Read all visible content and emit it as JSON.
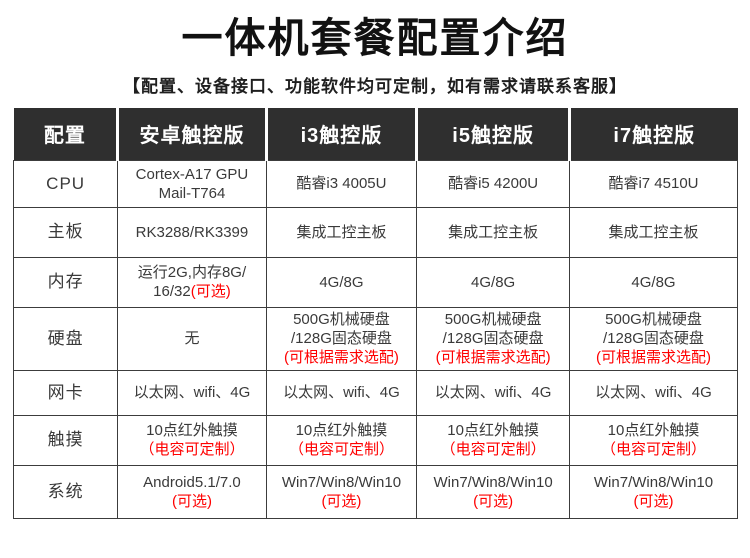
{
  "page": {
    "title": "一体机套餐配置介绍",
    "subtitle": "【配置、设备接口、功能软件均可定制，如有需求请联系客服】"
  },
  "colors": {
    "header_bg": "#2f2f2f",
    "header_text": "#ffffff",
    "body_text": "#3a3a3a",
    "border": "#3c3c3c",
    "highlight_red": "#ff0000"
  },
  "table": {
    "columns": [
      "配置",
      "安卓触控版",
      "i3触控版",
      "i5触控版",
      "i7触控版"
    ],
    "rows": [
      {
        "label": "CPU",
        "cells": [
          [
            [
              {
                "t": "Cortex-A17 GPU"
              }
            ],
            [
              {
                "t": "Mail-T764"
              }
            ]
          ],
          [
            [
              {
                "t": "酷睿i3 4005U"
              }
            ]
          ],
          [
            [
              {
                "t": "酷睿i5 4200U"
              }
            ]
          ],
          [
            [
              {
                "t": "酷睿i7 4510U"
              }
            ]
          ]
        ]
      },
      {
        "label": "主板",
        "cells": [
          [
            [
              {
                "t": "RK3288/RK3399"
              }
            ]
          ],
          [
            [
              {
                "t": "集成工控主板"
              }
            ]
          ],
          [
            [
              {
                "t": "集成工控主板"
              }
            ]
          ],
          [
            [
              {
                "t": "集成工控主板"
              }
            ]
          ]
        ]
      },
      {
        "label": "内存",
        "cells": [
          [
            [
              {
                "t": "运行2G,内存8G/"
              }
            ],
            [
              {
                "t": "16/32"
              },
              {
                "t": "(可选)",
                "red": true
              }
            ]
          ],
          [
            [
              {
                "t": "4G/8G"
              }
            ]
          ],
          [
            [
              {
                "t": "4G/8G"
              }
            ]
          ],
          [
            [
              {
                "t": "4G/8G"
              }
            ]
          ]
        ]
      },
      {
        "label": "硬盘",
        "cells": [
          [
            [
              {
                "t": "无"
              }
            ]
          ],
          [
            [
              {
                "t": "500G机械硬盘"
              }
            ],
            [
              {
                "t": "/128G固态硬盘"
              }
            ],
            [
              {
                "t": "(可根据需求选配)",
                "red": true
              }
            ]
          ],
          [
            [
              {
                "t": "500G机械硬盘"
              }
            ],
            [
              {
                "t": "/128G固态硬盘"
              }
            ],
            [
              {
                "t": "(可根据需求选配)",
                "red": true
              }
            ]
          ],
          [
            [
              {
                "t": "500G机械硬盘"
              }
            ],
            [
              {
                "t": "/128G固态硬盘"
              }
            ],
            [
              {
                "t": "(可根据需求选配)",
                "red": true
              }
            ]
          ]
        ]
      },
      {
        "label": "网卡",
        "cells": [
          [
            [
              {
                "t": "以太网、wifi、4G"
              }
            ]
          ],
          [
            [
              {
                "t": "以太网、wifi、4G"
              }
            ]
          ],
          [
            [
              {
                "t": "以太网、wifi、4G"
              }
            ]
          ],
          [
            [
              {
                "t": "以太网、wifi、4G"
              }
            ]
          ]
        ]
      },
      {
        "label": "触摸",
        "cells": [
          [
            [
              {
                "t": "10点红外触摸"
              }
            ],
            [
              {
                "t": "（电容可定制）",
                "red": true
              }
            ]
          ],
          [
            [
              {
                "t": "10点红外触摸"
              }
            ],
            [
              {
                "t": "（电容可定制）",
                "red": true
              }
            ]
          ],
          [
            [
              {
                "t": "10点红外触摸"
              }
            ],
            [
              {
                "t": "（电容可定制）",
                "red": true
              }
            ]
          ],
          [
            [
              {
                "t": "10点红外触摸"
              }
            ],
            [
              {
                "t": "（电容可定制）",
                "red": true
              }
            ]
          ]
        ]
      },
      {
        "label": "系统",
        "cells": [
          [
            [
              {
                "t": "Android5.1/7.0"
              }
            ],
            [
              {
                "t": "(可选)",
                "red": true
              }
            ]
          ],
          [
            [
              {
                "t": "Win7/Win8/Win10"
              }
            ],
            [
              {
                "t": "(可选)",
                "red": true
              }
            ]
          ],
          [
            [
              {
                "t": "Win7/Win8/Win10"
              }
            ],
            [
              {
                "t": "(可选)",
                "red": true
              }
            ]
          ],
          [
            [
              {
                "t": "Win7/Win8/Win10"
              }
            ],
            [
              {
                "t": "(可选)",
                "red": true
              }
            ]
          ]
        ]
      }
    ]
  }
}
